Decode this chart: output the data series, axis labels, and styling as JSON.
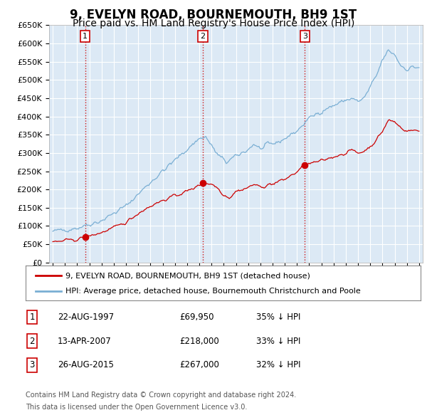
{
  "title": "9, EVELYN ROAD, BOURNEMOUTH, BH9 1ST",
  "subtitle": "Price paid vs. HM Land Registry's House Price Index (HPI)",
  "title_fontsize": 12,
  "subtitle_fontsize": 10,
  "ylim": [
    0,
    650000
  ],
  "yticks": [
    0,
    50000,
    100000,
    150000,
    200000,
    250000,
    300000,
    350000,
    400000,
    450000,
    500000,
    550000,
    600000,
    650000
  ],
  "ytick_labels": [
    "£0",
    "£50K",
    "£100K",
    "£150K",
    "£200K",
    "£250K",
    "£300K",
    "£350K",
    "£400K",
    "£450K",
    "£500K",
    "£550K",
    "£600K",
    "£650K"
  ],
  "xlim_start": 1994.7,
  "xlim_end": 2025.3,
  "sale_dates": [
    1997.646,
    2007.284,
    2015.646
  ],
  "sale_prices": [
    69950,
    218000,
    267000
  ],
  "sale_labels": [
    "1",
    "2",
    "3"
  ],
  "sale_info": [
    {
      "num": "1",
      "date": "22-AUG-1997",
      "price": "£69,950",
      "hpi": "35% ↓ HPI"
    },
    {
      "num": "2",
      "date": "13-APR-2007",
      "price": "£218,000",
      "hpi": "33% ↓ HPI"
    },
    {
      "num": "3",
      "date": "26-AUG-2015",
      "price": "£267,000",
      "hpi": "32% ↓ HPI"
    }
  ],
  "legend_line1": "9, EVELYN ROAD, BOURNEMOUTH, BH9 1ST (detached house)",
  "legend_line2": "HPI: Average price, detached house, Bournemouth Christchurch and Poole",
  "footer1": "Contains HM Land Registry data © Crown copyright and database right 2024.",
  "footer2": "This data is licensed under the Open Government Licence v3.0.",
  "bg_color": "#dce9f5",
  "grid_color": "#ffffff",
  "red_color": "#cc0000",
  "blue_color": "#7aafd4"
}
